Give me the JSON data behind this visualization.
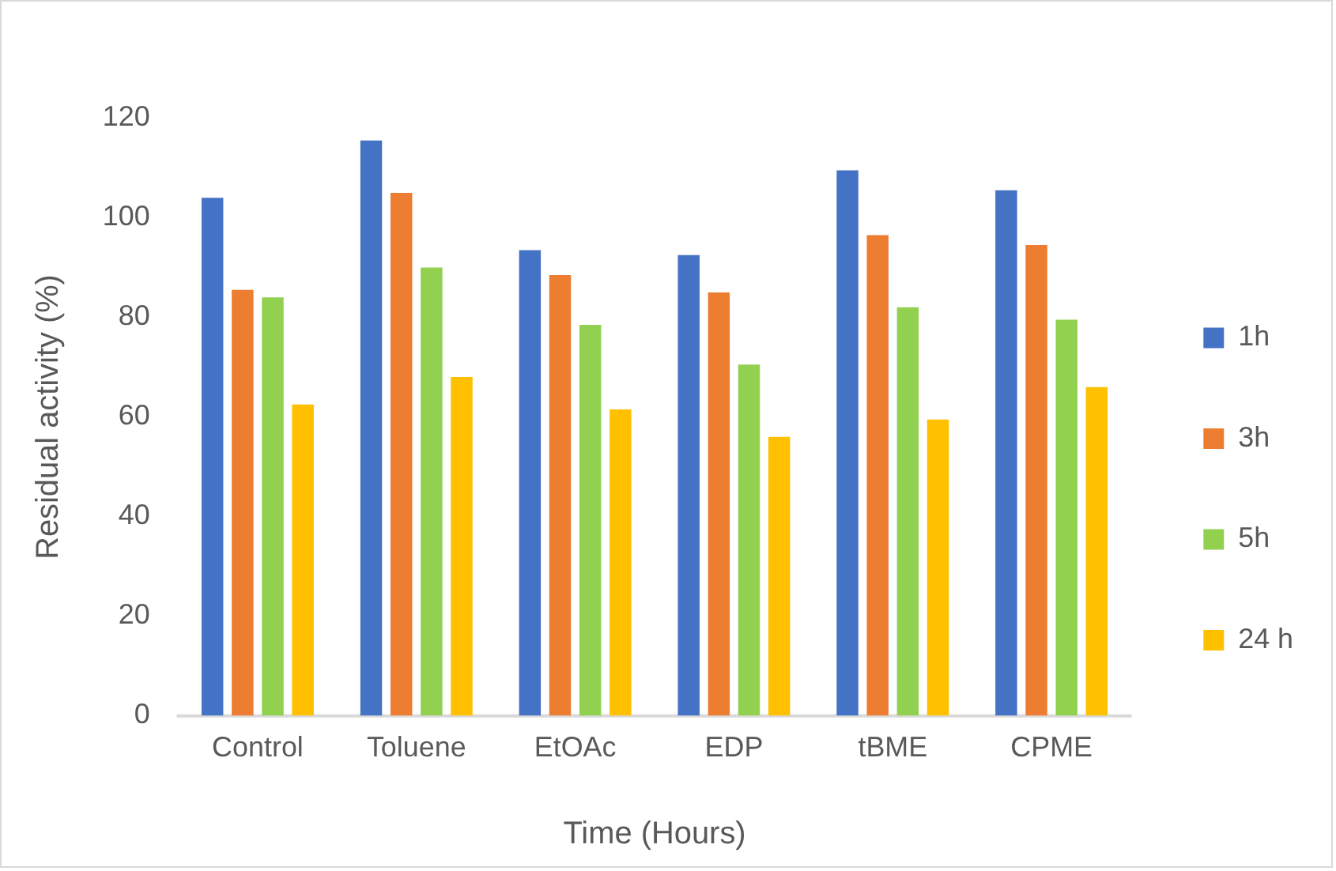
{
  "chart_data": {
    "type": "bar",
    "xlabel": "Time (Hours)",
    "ylabel": "Residual activity (%)",
    "categories": [
      "Control",
      "Toluene",
      "EtOAc",
      "EDP",
      "tBME",
      "CPME"
    ],
    "series": [
      {
        "name": "1h",
        "color": "#4472c4",
        "values": [
          104,
          115.5,
          93.5,
          92.5,
          109.5,
          105.5
        ]
      },
      {
        "name": "3h",
        "color": "#ed7d31",
        "values": [
          85.5,
          105,
          88.5,
          85,
          96.5,
          94.5
        ]
      },
      {
        "name": "5h",
        "color": "#92d050",
        "values": [
          84,
          90,
          78.5,
          70.5,
          82,
          79.5
        ]
      },
      {
        "name": "24 h",
        "color": "#ffc000",
        "values": [
          62.5,
          68,
          61.5,
          56,
          59.5,
          66
        ]
      }
    ],
    "ylim": [
      0,
      120
    ],
    "yticks": [
      0,
      20,
      40,
      60,
      80,
      100,
      120
    ],
    "grid": false,
    "legend": "right"
  }
}
